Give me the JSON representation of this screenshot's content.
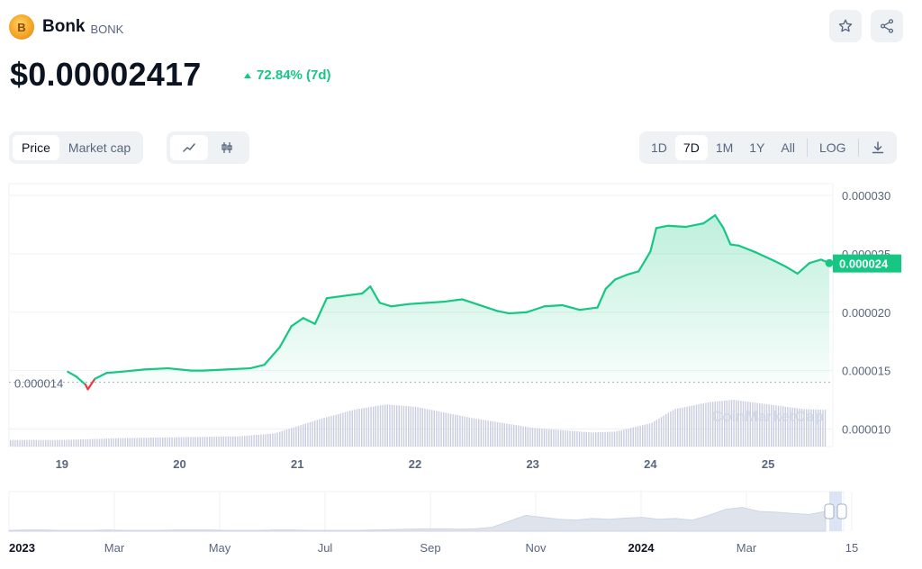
{
  "coin": {
    "logo_glyph": "B",
    "name": "Bonk",
    "symbol": "BONK",
    "price": "$0.00002417",
    "change": "72.84% (7d)",
    "change_color": "#16c784"
  },
  "toolbar": {
    "type_options": [
      "Price",
      "Market cap"
    ],
    "type_active": "Price",
    "style_icons": [
      "line-chart-icon",
      "candlestick-icon"
    ],
    "range_options": [
      "1D",
      "7D",
      "1M",
      "1Y",
      "All",
      "LOG"
    ],
    "range_active": "7D",
    "download_icon": "download-icon"
  },
  "colors": {
    "up": "#16c784",
    "down": "#ea3943",
    "volume": "#c8cde0",
    "grid": "#eff2f5",
    "axis_text": "#58667e"
  },
  "chart_data": {
    "type": "line",
    "title": "",
    "x_unit": "day of month",
    "xlim": [
      18.55,
      25.55
    ],
    "ylim": [
      8.5e-06,
      3.1e-05
    ],
    "yticks": [
      3e-05,
      2.5e-05,
      2e-05,
      1.5e-05,
      1e-05
    ],
    "ytick_labels": [
      "0.000030",
      "0.000025",
      "0.000020",
      "0.000015",
      "0.000010"
    ],
    "xticks": [
      19,
      20,
      21,
      22,
      23,
      24,
      25
    ],
    "xtick_labels": [
      "19",
      "20",
      "21",
      "22",
      "23",
      "24",
      "25"
    ],
    "open_price": 1.4e-05,
    "open_label": "0.000014",
    "current_price": 2.417e-05,
    "current_label": "0.000024",
    "watermark": "CoinMarketCap",
    "grid": true,
    "series": [
      {
        "x": [
          19.05,
          19.12,
          19.2,
          19.22,
          19.28,
          19.38,
          19.5,
          19.7,
          19.9,
          20.1,
          20.2,
          20.4,
          20.6,
          20.72,
          20.85,
          20.95,
          21.05,
          21.15,
          21.25,
          21.4,
          21.55,
          21.62,
          21.7,
          21.8,
          21.95,
          22.1,
          22.25,
          22.4,
          22.55,
          22.7,
          22.8,
          22.95,
          23.1,
          23.25,
          23.4,
          23.55,
          23.62,
          23.7,
          23.8,
          23.9,
          24.0,
          24.05,
          24.15,
          24.3,
          24.45,
          24.55,
          24.62,
          24.68,
          24.75,
          24.9,
          25.05,
          25.15,
          25.25,
          25.35,
          25.45,
          25.52
        ],
        "y": [
          1.49e-05,
          1.45e-05,
          1.38e-05,
          1.34e-05,
          1.43e-05,
          1.48e-05,
          1.49e-05,
          1.51e-05,
          1.52e-05,
          1.5e-05,
          1.5e-05,
          1.51e-05,
          1.52e-05,
          1.55e-05,
          1.7e-05,
          1.88e-05,
          1.95e-05,
          1.9e-05,
          2.12e-05,
          2.14e-05,
          2.16e-05,
          2.22e-05,
          2.08e-05,
          2.05e-05,
          2.07e-05,
          2.08e-05,
          2.09e-05,
          2.11e-05,
          2.06e-05,
          2.01e-05,
          1.99e-05,
          2e-05,
          2.05e-05,
          2.06e-05,
          2.02e-05,
          2.04e-05,
          2.2e-05,
          2.28e-05,
          2.32e-05,
          2.35e-05,
          2.52e-05,
          2.72e-05,
          2.74e-05,
          2.73e-05,
          2.76e-05,
          2.83e-05,
          2.72e-05,
          2.58e-05,
          2.57e-05,
          2.51e-05,
          2.44e-05,
          2.39e-05,
          2.33e-05,
          2.42e-05,
          2.45e-05,
          2.42e-05
        ]
      }
    ],
    "volume": {
      "x": [
        19.0,
        19.5,
        20.0,
        20.5,
        20.8,
        21.2,
        21.5,
        21.75,
        22.0,
        22.5,
        23.0,
        23.5,
        23.7,
        24.0,
        24.2,
        24.5,
        24.7,
        25.0,
        25.3,
        25.52
      ],
      "values": [
        0.14,
        0.18,
        0.2,
        0.22,
        0.28,
        0.6,
        0.8,
        0.9,
        0.85,
        0.6,
        0.4,
        0.3,
        0.32,
        0.5,
        0.8,
        0.95,
        1.0,
        0.9,
        0.8,
        0.78
      ]
    }
  },
  "navigator": {
    "xtick_labels": [
      "2023",
      "Mar",
      "May",
      "Jul",
      "Sep",
      "Nov",
      "2024",
      "Mar",
      "15"
    ],
    "bold_labels": [
      "2023",
      "2024"
    ],
    "series": [
      0.02,
      0.03,
      0.03,
      0.02,
      0.02,
      0.02,
      0.03,
      0.02,
      0.02,
      0.02,
      0.03,
      0.03,
      0.03,
      0.02,
      0.02,
      0.02,
      0.03,
      0.03,
      0.02,
      0.02,
      0.02,
      0.02,
      0.03,
      0.04,
      0.05,
      0.06,
      0.06,
      0.05,
      0.06,
      0.1,
      0.25,
      0.4,
      0.35,
      0.3,
      0.28,
      0.32,
      0.3,
      0.33,
      0.35,
      0.3,
      0.32,
      0.28,
      0.4,
      0.55,
      0.6,
      0.5,
      0.48,
      0.45,
      0.42,
      0.5
    ]
  }
}
